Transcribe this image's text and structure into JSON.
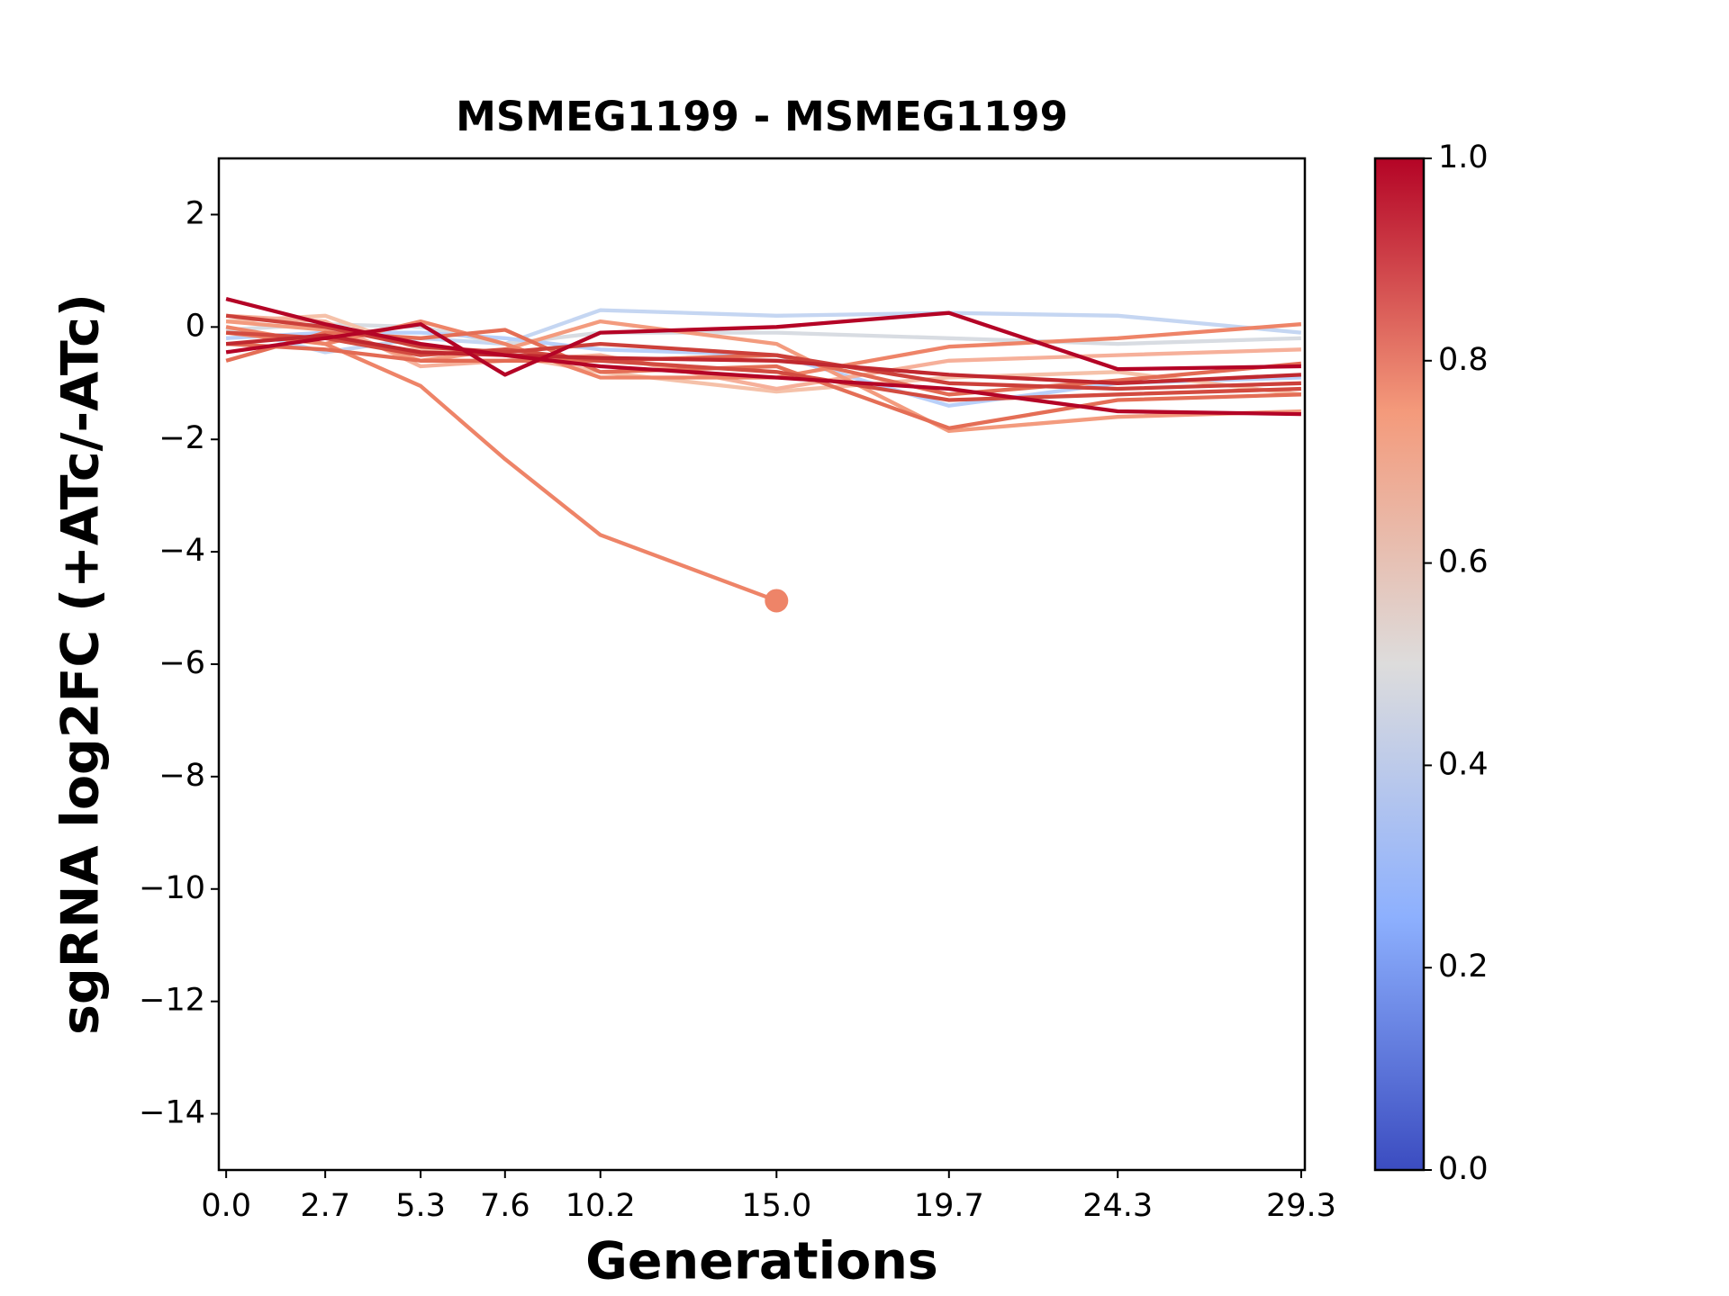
{
  "chart_data": {
    "type": "line",
    "title": "MSMEG1199 - MSMEG1199",
    "xlabel": "Generations",
    "ylabel": "sgRNA log2FC (+ATc/-ATc)",
    "x": [
      0.0,
      2.7,
      5.3,
      7.6,
      10.2,
      15.0,
      19.7,
      24.3,
      29.3
    ],
    "xlim": [
      -0.2,
      29.4
    ],
    "xticks": [
      {
        "value": 0.0,
        "label": "0.0"
      },
      {
        "value": 2.7,
        "label": "2.7"
      },
      {
        "value": 5.3,
        "label": "5.3"
      },
      {
        "value": 7.6,
        "label": "7.6"
      },
      {
        "value": 10.2,
        "label": "10.2"
      },
      {
        "value": 15.0,
        "label": "15.0"
      },
      {
        "value": 19.7,
        "label": "19.7"
      },
      {
        "value": 24.3,
        "label": "24.3"
      },
      {
        "value": 29.3,
        "label": "29.3"
      }
    ],
    "ylim": [
      -15,
      3
    ],
    "yticks": [
      {
        "value": 2,
        "label": "2"
      },
      {
        "value": 0,
        "label": "0"
      },
      {
        "value": -2,
        "label": "−2"
      },
      {
        "value": -4,
        "label": "−4"
      },
      {
        "value": -6,
        "label": "−6"
      },
      {
        "value": -8,
        "label": "−8"
      },
      {
        "value": -10,
        "label": "−10"
      },
      {
        "value": -12,
        "label": "−12"
      },
      {
        "value": -14,
        "label": "−14"
      }
    ],
    "series": [
      {
        "color": "#c5d6f2",
        "values": [
          0.0,
          -0.45,
          -0.2,
          -0.3,
          0.3,
          0.2,
          0.25,
          0.2,
          -0.1
        ]
      },
      {
        "color": "#d8dce2",
        "values": [
          -0.05,
          0.05,
          0.0,
          -0.3,
          -0.1,
          -0.1,
          -0.2,
          -0.3,
          -0.2
        ]
      },
      {
        "color": "#b9d0f9",
        "values": [
          -0.2,
          -0.1,
          -0.1,
          -0.2,
          -0.4,
          -0.5,
          -1.4,
          -1.0,
          -0.9
        ]
      },
      {
        "color": "#f5c1a9",
        "values": [
          0.1,
          0.2,
          -0.4,
          -0.5,
          -0.8,
          -1.15,
          -0.9,
          -0.8,
          -1.2
        ]
      },
      {
        "color": "#f6b09a",
        "values": [
          0.2,
          0.1,
          -0.7,
          -0.6,
          -0.5,
          -1.1,
          -0.6,
          -0.5,
          -0.4
        ]
      },
      {
        "color": "#f39b7e",
        "values": [
          0.1,
          -0.05,
          -0.6,
          -0.4,
          0.1,
          -0.3,
          -1.85,
          -1.6,
          -1.5
        ]
      },
      {
        "color": "#ee8468",
        "values": [
          0.0,
          -0.3,
          0.1,
          -0.3,
          -0.9,
          -0.9,
          -0.35,
          -0.2,
          0.05
        ]
      },
      {
        "color": "#ee8468",
        "values": [
          -0.1,
          -0.3,
          -1.05,
          -2.35,
          -3.7,
          -4.87,
          null,
          null,
          null
        ],
        "end_marker": true
      },
      {
        "color": "#e46e56",
        "values": [
          -0.6,
          -0.1,
          -0.2,
          -0.05,
          -0.8,
          -0.7,
          -1.8,
          -1.3,
          -1.2
        ]
      },
      {
        "color": "#e36b54",
        "values": [
          -0.3,
          -0.4,
          -0.6,
          -0.6,
          -0.6,
          -0.5,
          -1.2,
          -0.95,
          -0.65
        ]
      },
      {
        "color": "#d24b40",
        "values": [
          -0.1,
          -0.2,
          -0.5,
          -0.4,
          -0.6,
          -0.8,
          -1.3,
          -1.2,
          -1.1
        ]
      },
      {
        "color": "#cc403a",
        "values": [
          0.2,
          0.0,
          -0.35,
          -0.45,
          -0.3,
          -0.5,
          -1.0,
          -1.1,
          -1.0
        ]
      },
      {
        "color": "#c0282f",
        "values": [
          -0.3,
          -0.15,
          -0.45,
          -0.5,
          -0.55,
          -0.6,
          -0.85,
          -1.0,
          -0.85
        ]
      },
      {
        "color": "#b40426",
        "values": [
          0.5,
          0.05,
          -0.3,
          -0.5,
          -0.7,
          -0.9,
          -1.1,
          -1.5,
          -1.55
        ]
      },
      {
        "color": "#b40426",
        "values": [
          -0.45,
          -0.2,
          0.05,
          -0.85,
          -0.1,
          0.0,
          0.25,
          -0.75,
          -0.7
        ]
      }
    ],
    "colorbar": {
      "lim": [
        0,
        1
      ],
      "ticks": [
        {
          "value": 0,
          "label": "0.0"
        },
        {
          "value": 0.2,
          "label": "0.2"
        },
        {
          "value": 0.4,
          "label": "0.4"
        },
        {
          "value": 0.6,
          "label": "0.6"
        },
        {
          "value": 0.8,
          "label": "0.8"
        },
        {
          "value": 1,
          "label": "1.0"
        }
      ],
      "colors": [
        "#3b4cc0",
        "#8db0fe",
        "#dddcdc",
        "#f49a7b",
        "#b40426"
      ]
    }
  }
}
